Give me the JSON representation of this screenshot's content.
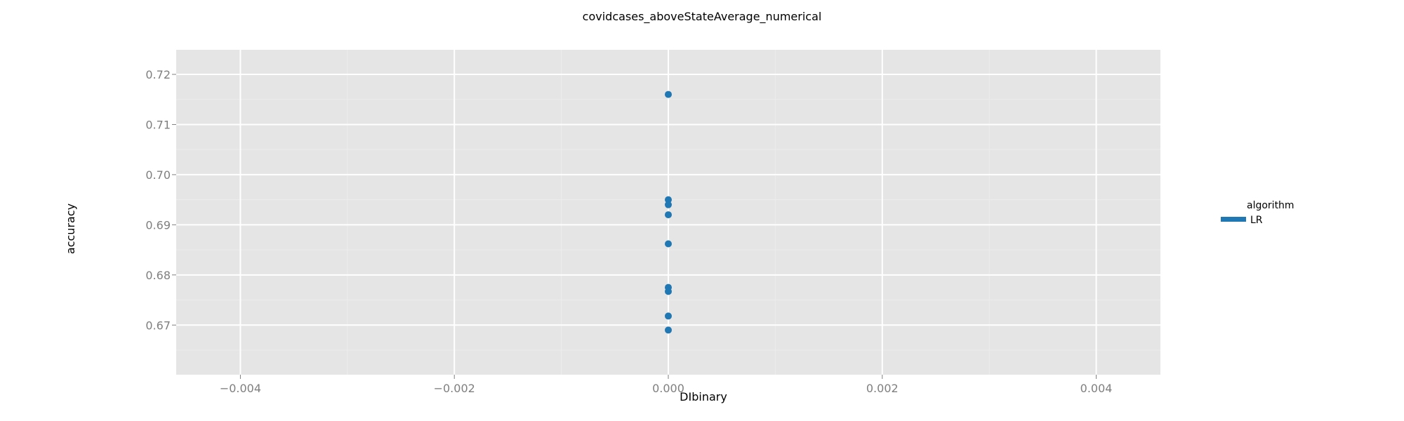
{
  "chart_data": {
    "type": "scatter",
    "title": "covidcases_aboveStateAverage_numerical",
    "xlabel": "DIbinary",
    "ylabel": "accuracy",
    "xlim": [
      -0.0046,
      0.0046
    ],
    "ylim": [
      0.6601,
      0.7249
    ],
    "x_ticks": [
      -0.004,
      -0.002,
      0.0,
      0.002,
      0.004
    ],
    "x_tick_labels": [
      "−0.004",
      "−0.002",
      "0.000",
      "0.002",
      "0.004"
    ],
    "y_ticks": [
      0.67,
      0.68,
      0.69,
      0.7,
      0.71,
      0.72
    ],
    "y_tick_labels": [
      "0.67",
      "0.68",
      "0.69",
      "0.70",
      "0.71",
      "0.72"
    ],
    "grid": true,
    "legend": {
      "title": "algorithm",
      "position": "right",
      "entries": [
        {
          "label": "LR",
          "color": "#1f77b4"
        }
      ]
    },
    "series": [
      {
        "name": "LR",
        "color": "#1f77b4",
        "points": [
          {
            "x": 0.0,
            "y": 0.716
          },
          {
            "x": 0.0,
            "y": 0.695
          },
          {
            "x": 0.0,
            "y": 0.694
          },
          {
            "x": 0.0,
            "y": 0.692
          },
          {
            "x": 0.0,
            "y": 0.6862
          },
          {
            "x": 0.0,
            "y": 0.6775
          },
          {
            "x": 0.0,
            "y": 0.6767
          },
          {
            "x": 0.0,
            "y": 0.6718
          },
          {
            "x": 0.0,
            "y": 0.669
          }
        ]
      }
    ],
    "colors": {
      "panel_background": "#e5e5e5",
      "major_grid": "#ffffff",
      "minor_grid": "#ececec",
      "tick_text": "#7f7f7f"
    }
  }
}
